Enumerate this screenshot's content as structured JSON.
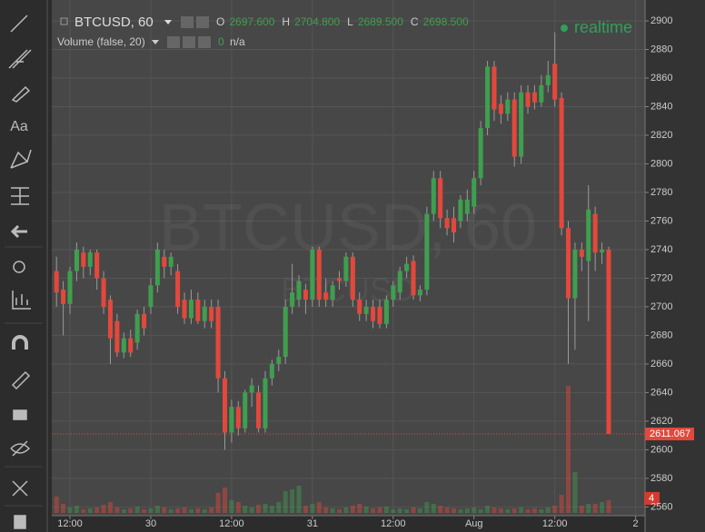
{
  "header": {
    "symbol": "BTCUSD, 60",
    "watermark_small": "BTCUSD",
    "ohlc": [
      {
        "label": "O",
        "value": "2697.600"
      },
      {
        "label": "H",
        "value": "2704.800"
      },
      {
        "label": "L",
        "value": "2689.500"
      },
      {
        "label": "C",
        "value": "2698.500"
      }
    ],
    "volume_study": "Volume (false, 20)",
    "volume_value": "0",
    "volume_na": "n/a",
    "status": "realtime",
    "volume_scale_label": 4
  },
  "chart_data": {
    "type": "candlestick",
    "up_color": "#3f9e4f",
    "down_color": "#e2483c",
    "grid": true,
    "xlim": [
      -0.7,
      87.4
    ],
    "ylim": [
      2553.9,
      2914.6
    ],
    "vlim": [
      0,
      400
    ],
    "xticks": [
      {
        "value": 2,
        "label": "12:00"
      },
      {
        "value": 14,
        "label": "30"
      },
      {
        "value": 26,
        "label": "12:00"
      },
      {
        "value": 38,
        "label": "31"
      },
      {
        "value": 50,
        "label": "12:00"
      },
      {
        "value": 62,
        "label": "Aug"
      },
      {
        "value": 74,
        "label": "12:00"
      },
      {
        "value": 86,
        "label": "2"
      }
    ],
    "yticks": [
      2560,
      2580,
      2600,
      2620,
      2640,
      2660,
      2680,
      2700,
      2720,
      2740,
      2760,
      2780,
      2800,
      2820,
      2840,
      2860,
      2880,
      2900
    ],
    "x": [
      0,
      1,
      2,
      3,
      4,
      5,
      6,
      7,
      8,
      9,
      10,
      11,
      12,
      13,
      14,
      15,
      16,
      17,
      18,
      19,
      20,
      21,
      22,
      23,
      24,
      25,
      26,
      27,
      28,
      29,
      30,
      31,
      32,
      33,
      34,
      35,
      36,
      37,
      38,
      39,
      40,
      41,
      42,
      43,
      44,
      45,
      46,
      47,
      48,
      49,
      50,
      51,
      52,
      53,
      54,
      55,
      56,
      57,
      58,
      59,
      60,
      61,
      62,
      63,
      64,
      65,
      66,
      67,
      68,
      69,
      70,
      71,
      72,
      73,
      74,
      75,
      76,
      77,
      78,
      79,
      80,
      81,
      82
    ],
    "candles": [
      [
        2725,
        2735,
        2700,
        2710
      ],
      [
        2712,
        2718,
        2680,
        2702
      ],
      [
        2702,
        2728,
        2695,
        2725
      ],
      [
        2725,
        2745,
        2718,
        2740
      ],
      [
        2738,
        2742,
        2720,
        2728
      ],
      [
        2728,
        2740,
        2722,
        2738
      ],
      [
        2738,
        2740,
        2712,
        2720
      ],
      [
        2720,
        2725,
        2695,
        2700
      ],
      [
        2705,
        2708,
        2660,
        2678
      ],
      [
        2690,
        2695,
        2665,
        2668
      ],
      [
        2668,
        2682,
        2664,
        2678
      ],
      [
        2678,
        2684,
        2665,
        2668
      ],
      [
        2675,
        2698,
        2670,
        2695
      ],
      [
        2695,
        2700,
        2680,
        2685
      ],
      [
        2700,
        2720,
        2695,
        2715
      ],
      [
        2715,
        2745,
        2710,
        2740
      ],
      [
        2735,
        2740,
        2720,
        2728
      ],
      [
        2728,
        2738,
        2722,
        2735
      ],
      [
        2725,
        2730,
        2695,
        2700
      ],
      [
        2705,
        2710,
        2688,
        2692
      ],
      [
        2692,
        2712,
        2688,
        2705
      ],
      [
        2705,
        2710,
        2688,
        2690
      ],
      [
        2690,
        2705,
        2685,
        2700
      ],
      [
        2700,
        2705,
        2685,
        2690
      ],
      [
        2700,
        2705,
        2640,
        2650
      ],
      [
        2650,
        2655,
        2600,
        2612
      ],
      [
        2612,
        2635,
        2605,
        2630
      ],
      [
        2630,
        2634,
        2610,
        2615
      ],
      [
        2615,
        2642,
        2612,
        2640
      ],
      [
        2640,
        2650,
        2630,
        2645
      ],
      [
        2640,
        2645,
        2612,
        2615
      ],
      [
        2615,
        2655,
        2612,
        2650
      ],
      [
        2650,
        2663,
        2645,
        2660
      ],
      [
        2660,
        2670,
        2655,
        2665
      ],
      [
        2665,
        2705,
        2660,
        2700
      ],
      [
        2700,
        2730,
        2695,
        2710
      ],
      [
        2705,
        2722,
        2700,
        2718
      ],
      [
        2712,
        2716,
        2695,
        2705
      ],
      [
        2705,
        2742,
        2700,
        2740
      ],
      [
        2740,
        2742,
        2700,
        2705
      ],
      [
        2710,
        2720,
        2700,
        2705
      ],
      [
        2705,
        2718,
        2700,
        2715
      ],
      [
        2720,
        2725,
        2712,
        2718
      ],
      [
        2718,
        2738,
        2714,
        2735
      ],
      [
        2735,
        2738,
        2700,
        2705
      ],
      [
        2705,
        2710,
        2690,
        2695
      ],
      [
        2695,
        2705,
        2690,
        2700
      ],
      [
        2700,
        2705,
        2685,
        2690
      ],
      [
        2700,
        2705,
        2685,
        2688
      ],
      [
        2688,
        2708,
        2685,
        2705
      ],
      [
        2705,
        2718,
        2700,
        2715
      ],
      [
        2710,
        2728,
        2705,
        2725
      ],
      [
        2725,
        2735,
        2720,
        2730
      ],
      [
        2732,
        2736,
        2705,
        2708
      ],
      [
        2708,
        2715,
        2704,
        2712
      ],
      [
        2712,
        2770,
        2708,
        2765
      ],
      [
        2765,
        2795,
        2760,
        2790
      ],
      [
        2790,
        2795,
        2755,
        2762
      ],
      [
        2762,
        2768,
        2750,
        2755
      ],
      [
        2762,
        2770,
        2745,
        2752
      ],
      [
        2760,
        2778,
        2755,
        2775
      ],
      [
        2765,
        2782,
        2760,
        2775
      ],
      [
        2770,
        2795,
        2765,
        2790
      ],
      [
        2790,
        2830,
        2785,
        2825
      ],
      [
        2825,
        2872,
        2820,
        2868
      ],
      [
        2868,
        2872,
        2830,
        2838
      ],
      [
        2842,
        2848,
        2828,
        2835
      ],
      [
        2835,
        2850,
        2830,
        2845
      ],
      [
        2845,
        2850,
        2798,
        2805
      ],
      [
        2805,
        2855,
        2800,
        2850
      ],
      [
        2850,
        2855,
        2835,
        2840
      ],
      [
        2850,
        2855,
        2838,
        2843
      ],
      [
        2843,
        2862,
        2840,
        2855
      ],
      [
        2855,
        2872,
        2850,
        2862
      ],
      [
        2870,
        2892,
        2840,
        2845
      ],
      [
        2846,
        2850,
        2750,
        2755
      ],
      [
        2755,
        2760,
        2660,
        2706
      ],
      [
        2706,
        2745,
        2670,
        2740
      ],
      [
        2740,
        2745,
        2725,
        2735
      ],
      [
        2732,
        2785,
        2690,
        2768
      ],
      [
        2765,
        2770,
        2725,
        2738
      ],
      [
        2738,
        2745,
        2730,
        2740
      ],
      [
        2740,
        2742,
        2611.067,
        2611.067
      ]
    ],
    "volumes": [
      18,
      10,
      6,
      8,
      4,
      5,
      6,
      9,
      12,
      6,
      4,
      5,
      7,
      4,
      5,
      8,
      6,
      4,
      5,
      6,
      4,
      5,
      4,
      6,
      22,
      28,
      14,
      12,
      8,
      6,
      9,
      10,
      8,
      12,
      24,
      26,
      30,
      8,
      10,
      12,
      6,
      5,
      4,
      6,
      8,
      10,
      7,
      5,
      6,
      7,
      4,
      5,
      4,
      6,
      5,
      12,
      10,
      8,
      6,
      5,
      4,
      5,
      6,
      4,
      8,
      6,
      5,
      4,
      5,
      6,
      4,
      5,
      4,
      6,
      8,
      20,
      140,
      45,
      8,
      10,
      10,
      12,
      14
    ]
  }
}
